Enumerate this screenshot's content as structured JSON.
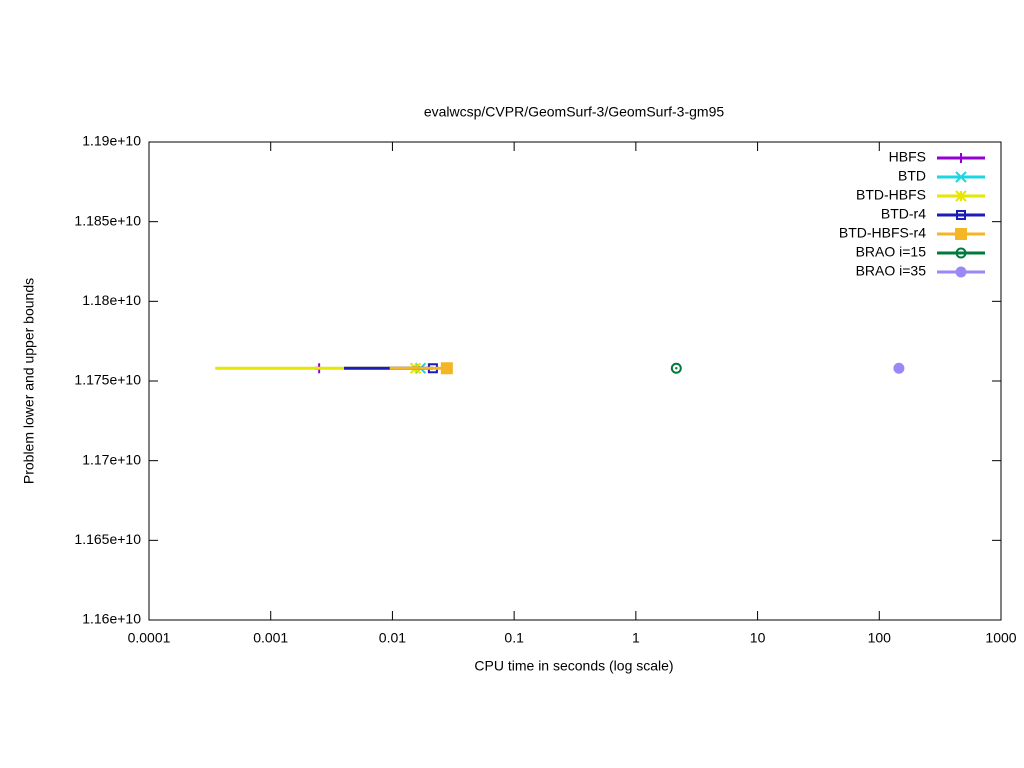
{
  "chart_data": {
    "type": "line",
    "title": "evalwcsp/CVPR/GeomSurf-3/GeomSurf-3-gm95",
    "x_label": "CPU time in seconds (log scale)",
    "y_label": "Problem lower and upper bounds",
    "xscale": "log",
    "xlim": [
      0.0001,
      1000
    ],
    "xticks": [
      0.0001,
      0.001,
      0.01,
      0.1,
      1,
      10,
      100,
      1000
    ],
    "ylim": [
      11600000000,
      11900000000
    ],
    "yticks": [
      {
        "value": 11600000000,
        "label": "1.16e+10"
      },
      {
        "value": 11650000000,
        "label": "1.165e+10"
      },
      {
        "value": 11700000000,
        "label": "1.17e+10"
      },
      {
        "value": 11750000000,
        "label": "1.175e+10"
      },
      {
        "value": 11800000000,
        "label": "1.18e+10"
      },
      {
        "value": 11850000000,
        "label": "1.185e+10"
      },
      {
        "value": 11900000000,
        "label": "1.19e+10"
      }
    ],
    "legend": "top-right",
    "series": [
      {
        "name": "HBFS",
        "color": "#9400d3",
        "marker": "plus",
        "x": [
          0.0023,
          0.0025
        ],
        "values": [
          11758000000,
          11758000000
        ]
      },
      {
        "name": "BTD",
        "color": "#1fd6e0",
        "marker": "cross",
        "x": [
          0.017
        ],
        "values": [
          11758000000
        ]
      },
      {
        "name": "BTD-HBFS",
        "color": "#e6e600",
        "marker": "star",
        "x": [
          0.00035,
          0.0155
        ],
        "values": [
          11758000000,
          11758000000
        ]
      },
      {
        "name": "BTD-r4",
        "color": "#1c1cb8",
        "marker": "square-open",
        "x": [
          0.004,
          0.0215
        ],
        "values": [
          11758000000,
          11758000000
        ]
      },
      {
        "name": "BTD-HBFS-r4",
        "color": "#f5b626",
        "marker": "square",
        "x": [
          0.0095,
          0.028
        ],
        "values": [
          11758000000,
          11758000000
        ]
      },
      {
        "name": "BRAO i=15",
        "color": "#007a3d",
        "marker": "circle-dot",
        "x": [
          2.15
        ],
        "values": [
          11758000000
        ]
      },
      {
        "name": "BRAO i=35",
        "color": "#9b87f5",
        "marker": "circle",
        "x": [
          145
        ],
        "values": [
          11758000000
        ]
      }
    ]
  }
}
